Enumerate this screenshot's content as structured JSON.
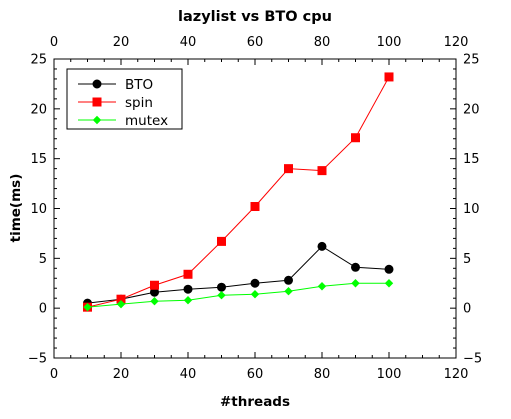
{
  "chart_data": {
    "type": "line",
    "title": "lazylist vs BTO cpu",
    "xlabel": "#threads",
    "ylabel": "time(ms)",
    "xlim": [
      0,
      120
    ],
    "ylim": [
      -5,
      25
    ],
    "x_ticks": [
      "0",
      "20",
      "40",
      "60",
      "80",
      "100",
      "120"
    ],
    "y_ticks": [
      "−5",
      "0",
      "5",
      "10",
      "15",
      "20",
      "25"
    ],
    "x_tick_values": [
      0,
      20,
      40,
      60,
      80,
      100,
      120
    ],
    "y_tick_values": [
      -5,
      0,
      5,
      10,
      15,
      20,
      25
    ],
    "grid": false,
    "legend_position": "top-left",
    "x": [
      10,
      20,
      30,
      40,
      50,
      60,
      70,
      80,
      90,
      100
    ],
    "series": [
      {
        "name": "BTO",
        "color": "#000000",
        "marker": "circle",
        "values": [
          0.5,
          0.9,
          1.6,
          1.9,
          2.1,
          2.5,
          2.8,
          6.2,
          4.1,
          3.9
        ]
      },
      {
        "name": "spin",
        "color": "#ff0000",
        "marker": "square",
        "values": [
          0.1,
          0.9,
          2.3,
          3.4,
          6.7,
          10.2,
          14.0,
          13.8,
          17.1,
          23.2
        ]
      },
      {
        "name": "mutex",
        "color": "#00ff00",
        "marker": "diamond",
        "values": [
          0.1,
          0.4,
          0.7,
          0.8,
          1.3,
          1.4,
          1.7,
          2.2,
          2.5,
          2.5
        ]
      }
    ]
  }
}
